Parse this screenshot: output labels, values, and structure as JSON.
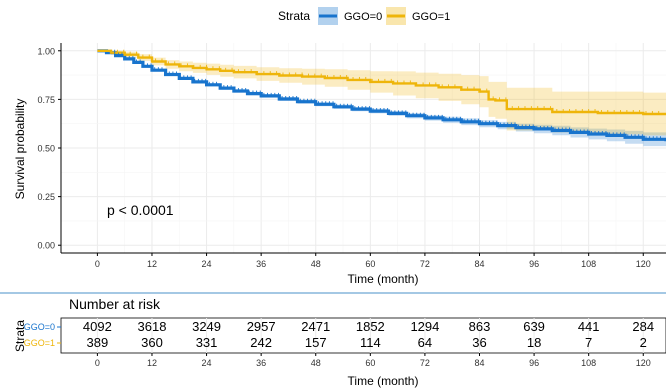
{
  "legend": {
    "title": "Strata",
    "entries": [
      {
        "label": "GGO=0",
        "color": "#1874CD"
      },
      {
        "label": "GGO=1",
        "color": "#EEB50A"
      }
    ]
  },
  "pvalue": "p < 0.0001",
  "risk_table": {
    "title": "Number at risk",
    "ylabel": "Strata",
    "xlabel": "Time (month)",
    "times": [
      0,
      12,
      24,
      36,
      48,
      60,
      72,
      84,
      96,
      108,
      120
    ],
    "rows": [
      {
        "label": "GGO=0",
        "color": "#1874CD",
        "values": [
          "4092",
          "3618",
          "3249",
          "2957",
          "2471",
          "1852",
          "1294",
          "863",
          "639",
          "441",
          "284"
        ]
      },
      {
        "label": "GGO=1",
        "color": "#EEB50A",
        "values": [
          "389",
          "360",
          "331",
          "242",
          "157",
          "114",
          "64",
          "36",
          "18",
          "7",
          "2"
        ]
      }
    ]
  },
  "chart_data": {
    "type": "line",
    "title": "",
    "xlabel": "Time (month)",
    "ylabel": "Survival probability",
    "xlim": [
      -8,
      125
    ],
    "ylim": [
      -0.04,
      1.04
    ],
    "xticks": [
      0,
      12,
      24,
      36,
      48,
      60,
      72,
      84,
      96,
      108,
      120
    ],
    "yticks": [
      0,
      0.25,
      0.5,
      0.75,
      1.0
    ],
    "ytick_labels": [
      "0.00",
      "0.25",
      "0.50",
      "0.75",
      "1.00"
    ],
    "grid": true,
    "legend_position": "top",
    "series": [
      {
        "name": "GGO=0",
        "color": "#1874CD",
        "x": [
          0,
          2,
          4,
          6,
          8,
          10,
          12,
          15,
          18,
          21,
          24,
          27,
          30,
          33,
          36,
          40,
          44,
          48,
          52,
          56,
          60,
          64,
          68,
          72,
          76,
          80,
          84,
          88,
          92,
          96,
          100,
          104,
          108,
          112,
          116,
          120,
          125
        ],
        "y": [
          1.0,
          0.99,
          0.975,
          0.958,
          0.94,
          0.92,
          0.9,
          0.878,
          0.858,
          0.84,
          0.825,
          0.808,
          0.793,
          0.78,
          0.768,
          0.752,
          0.738,
          0.725,
          0.712,
          0.7,
          0.69,
          0.678,
          0.666,
          0.655,
          0.645,
          0.635,
          0.625,
          0.615,
          0.605,
          0.598,
          0.59,
          0.58,
          0.572,
          0.565,
          0.555,
          0.545,
          0.535
        ],
        "lower": [
          1.0,
          0.987,
          0.97,
          0.952,
          0.933,
          0.913,
          0.893,
          0.871,
          0.851,
          0.833,
          0.817,
          0.8,
          0.785,
          0.771,
          0.759,
          0.742,
          0.728,
          0.715,
          0.701,
          0.689,
          0.678,
          0.665,
          0.652,
          0.641,
          0.629,
          0.618,
          0.607,
          0.596,
          0.585,
          0.576,
          0.566,
          0.554,
          0.544,
          0.535,
          0.522,
          0.51,
          0.498
        ],
        "upper": [
          1.0,
          0.993,
          0.98,
          0.964,
          0.947,
          0.927,
          0.907,
          0.885,
          0.865,
          0.847,
          0.833,
          0.816,
          0.801,
          0.789,
          0.777,
          0.762,
          0.748,
          0.735,
          0.723,
          0.711,
          0.702,
          0.691,
          0.68,
          0.669,
          0.661,
          0.652,
          0.643,
          0.634,
          0.625,
          0.62,
          0.614,
          0.606,
          0.6,
          0.595,
          0.588,
          0.58,
          0.572
        ]
      },
      {
        "name": "GGO=1",
        "color": "#EEB50A",
        "x": [
          0,
          3,
          6,
          9,
          12,
          15,
          18,
          21,
          24,
          27,
          30,
          35,
          40,
          45,
          50,
          55,
          60,
          65,
          70,
          75,
          80,
          84,
          86,
          87.5,
          90,
          100,
          110,
          120,
          125
        ],
        "y": [
          1.0,
          0.99,
          0.98,
          0.965,
          0.945,
          0.93,
          0.92,
          0.912,
          0.905,
          0.897,
          0.89,
          0.88,
          0.873,
          0.867,
          0.86,
          0.85,
          0.84,
          0.832,
          0.822,
          0.812,
          0.8,
          0.79,
          0.75,
          0.745,
          0.7,
          0.685,
          0.68,
          0.675,
          0.675
        ],
        "lower": [
          1.0,
          0.98,
          0.965,
          0.948,
          0.925,
          0.908,
          0.895,
          0.886,
          0.876,
          0.866,
          0.858,
          0.845,
          0.836,
          0.826,
          0.815,
          0.8,
          0.785,
          0.77,
          0.756,
          0.742,
          0.725,
          0.71,
          0.66,
          0.65,
          0.59,
          0.58,
          0.57,
          0.565,
          0.565
        ],
        "upper": [
          1.0,
          1.0,
          0.995,
          0.982,
          0.965,
          0.952,
          0.945,
          0.938,
          0.934,
          0.928,
          0.922,
          0.915,
          0.91,
          0.908,
          0.905,
          0.9,
          0.895,
          0.894,
          0.888,
          0.882,
          0.875,
          0.87,
          0.84,
          0.84,
          0.81,
          0.79,
          0.79,
          0.785,
          0.785
        ]
      }
    ]
  }
}
